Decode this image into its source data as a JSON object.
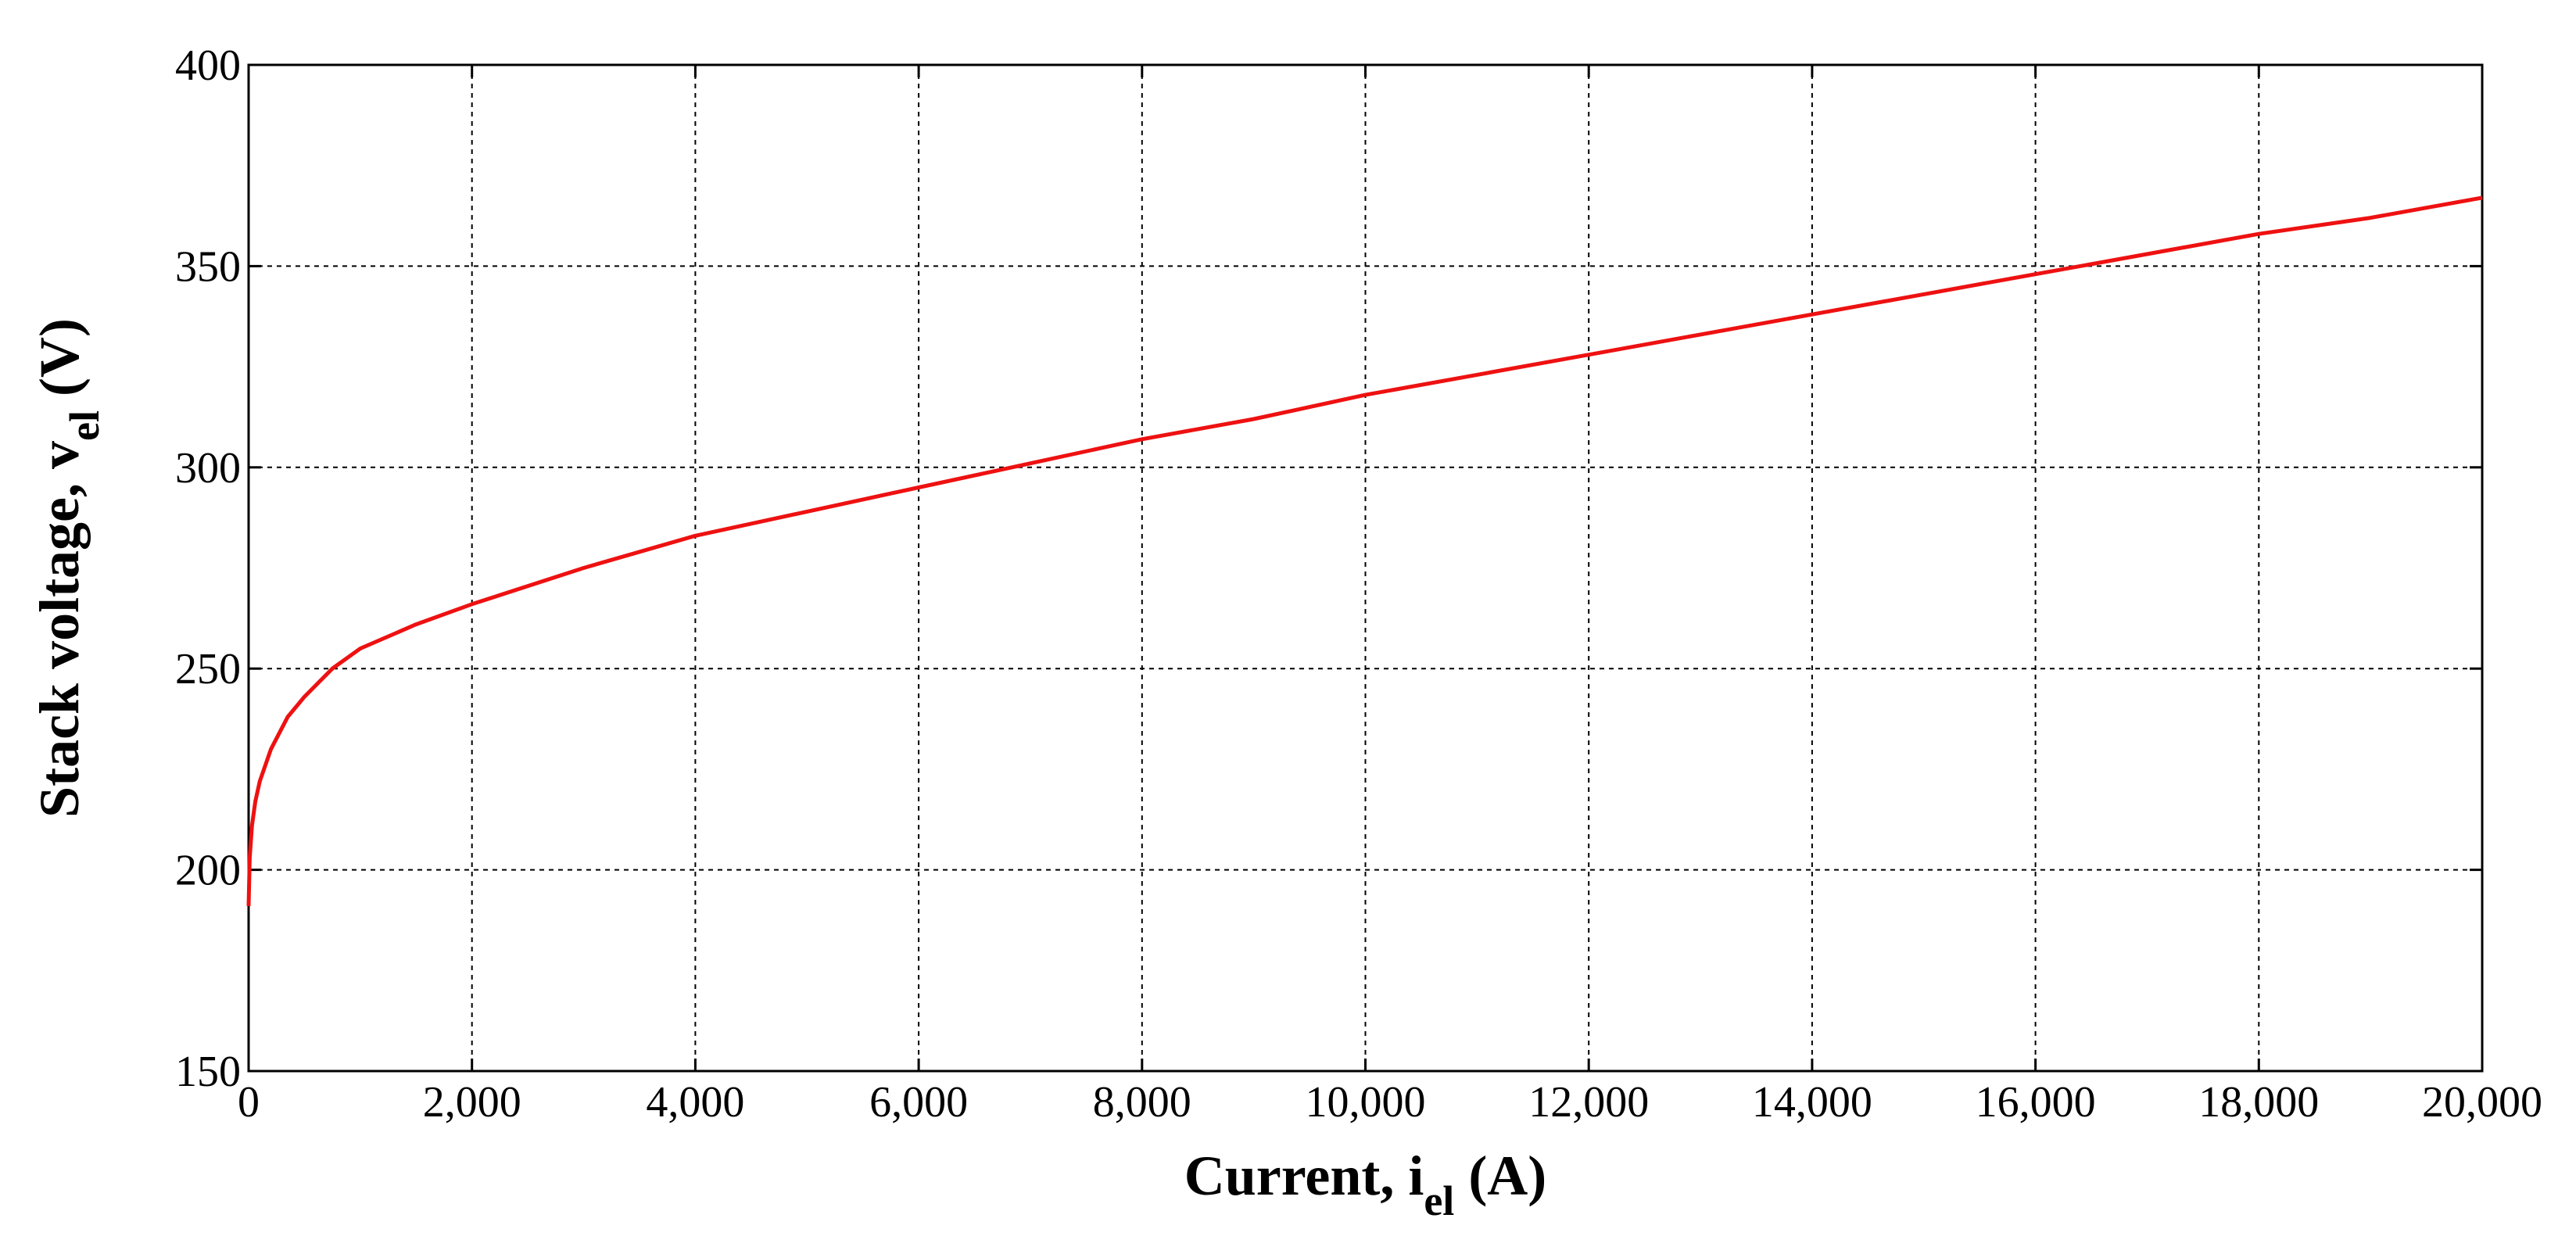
{
  "chart_data": {
    "type": "line",
    "title": "",
    "xlabel": {
      "main": "Current, i",
      "subscript": "el",
      "unit": " (A)"
    },
    "ylabel": {
      "main": "Stack voltage, v",
      "subscript": "el",
      "unit": " (V)"
    },
    "xlim": [
      0,
      20000
    ],
    "ylim": [
      150,
      400
    ],
    "xticks": [
      0,
      2000,
      4000,
      6000,
      8000,
      10000,
      12000,
      14000,
      16000,
      18000,
      20000
    ],
    "xtick_labels": [
      "0",
      "2,000",
      "4,000",
      "6,000",
      "8,000",
      "10,000",
      "12,000",
      "14,000",
      "16,000",
      "18,000",
      "20,000"
    ],
    "yticks": [
      150,
      200,
      250,
      300,
      350,
      400
    ],
    "ytick_labels": [
      "150",
      "200",
      "250",
      "300",
      "350",
      "400"
    ],
    "grid": true,
    "legend": "none",
    "series": [
      {
        "color": "#ee1111",
        "x": [
          0,
          10,
          30,
          60,
          100,
          200,
          350,
          500,
          750,
          1000,
          1500,
          2000,
          3000,
          4000,
          5000,
          6000,
          7000,
          8000,
          9000,
          10000,
          11000,
          12000,
          13000,
          14000,
          15000,
          16000,
          17000,
          18000,
          19000,
          20000
        ],
        "y": [
          191,
          203,
          211,
          217,
          222,
          230,
          238,
          243,
          250,
          255,
          261,
          266,
          275,
          283,
          289,
          295,
          301,
          307,
          312,
          318,
          323,
          328,
          333,
          338,
          343,
          348,
          353,
          358,
          362,
          367
        ]
      }
    ]
  }
}
